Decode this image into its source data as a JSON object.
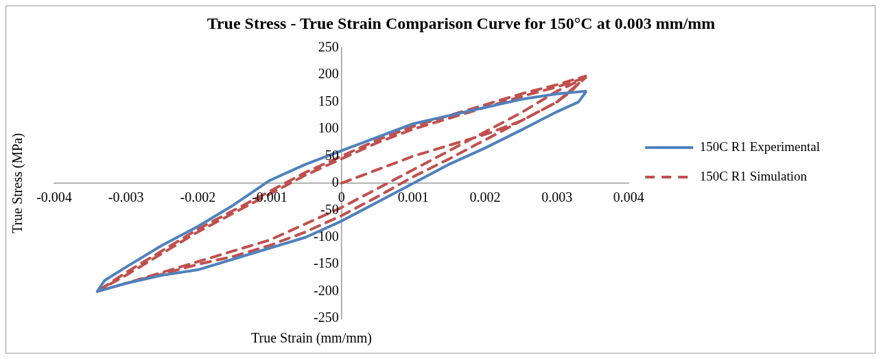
{
  "chart_data": {
    "type": "line",
    "title": "True Stress - True Strain Comparison Curve for 150°C at 0.003 mm/mm",
    "xlabel": "True Strain (mm/mm)",
    "ylabel": "True Stress (MPa)",
    "xlim": [
      -0.004,
      0.004
    ],
    "xticks": [
      -0.004,
      -0.003,
      -0.002,
      -0.001,
      0,
      0.001,
      0.002,
      0.003,
      0.004
    ],
    "ylim": [
      -250,
      250
    ],
    "yticks": [
      -250,
      -200,
      -150,
      -100,
      -50,
      0,
      50,
      100,
      150,
      200,
      250
    ],
    "grid": false,
    "legend": "right",
    "marker": "none",
    "series": [
      {
        "name": "150C R1 Experimental",
        "color": "#4f81bd",
        "line_style": "solid",
        "x": [
          0.0034,
          0.0033,
          0.003,
          0.0025,
          0.002,
          0.0015,
          0.001,
          0.0005,
          0,
          -0.0005,
          -0.001,
          -0.0015,
          -0.002,
          -0.0025,
          -0.003,
          -0.0034,
          -0.0033,
          -0.003,
          -0.0025,
          -0.002,
          -0.0015,
          -0.001,
          -0.0005,
          0,
          0.0005,
          0.001,
          0.0015,
          0.002,
          0.0025,
          0.003,
          0.0034
        ],
        "values": [
          168,
          150,
          132,
          98,
          65,
          35,
          0,
          -35,
          -70,
          -100,
          -120,
          -140,
          -160,
          -170,
          -185,
          -200,
          -180,
          -155,
          -115,
          -80,
          -40,
          5,
          35,
          60,
          85,
          110,
          125,
          140,
          155,
          165,
          170
        ]
      },
      {
        "name": "150C R1 Simulation",
        "color": "#c0504d",
        "line_style": "dashed",
        "x": [
          0,
          0.0005,
          0.001,
          0.0015,
          0.002,
          0.0025,
          0.003,
          0.0034,
          0.003,
          0.0025,
          0.002,
          0.0015,
          0.001,
          0.0005,
          0,
          -0.0005,
          -0.001,
          -0.0015,
          -0.002,
          -0.0025,
          -0.003,
          -0.0034,
          -0.003,
          -0.0025,
          -0.002,
          -0.0015,
          -0.001,
          -0.0005,
          0,
          0.0005,
          0.001,
          0.0015,
          0.002,
          0.0025,
          0.003,
          0.0034,
          0.0032,
          0.003,
          0.0025,
          0.002,
          0.0015,
          0.001,
          0.0005,
          0,
          -0.0005,
          -0.001,
          -0.0015,
          -0.002,
          -0.0025,
          -0.003,
          -0.0034,
          -0.003,
          -0.0025,
          -0.002,
          -0.0015,
          -0.001,
          -0.0005,
          0,
          0.0005,
          0.001,
          0.0015,
          0.002,
          0.0025,
          0.003,
          0.0034
        ],
        "values": [
          0,
          25,
          50,
          70,
          90,
          115,
          150,
          195,
          170,
          130,
          95,
          60,
          25,
          -10,
          -45,
          -75,
          -105,
          -125,
          -145,
          -165,
          -185,
          -200,
          -165,
          -125,
          -85,
          -50,
          -15,
          20,
          50,
          80,
          105,
          125,
          145,
          165,
          182,
          198,
          170,
          150,
          115,
          80,
          45,
          12,
          -25,
          -60,
          -90,
          -115,
          -135,
          -150,
          -168,
          -185,
          -200,
          -170,
          -130,
          -90,
          -55,
          -20,
          15,
          45,
          75,
          100,
          120,
          140,
          160,
          178,
          195
        ]
      }
    ]
  }
}
